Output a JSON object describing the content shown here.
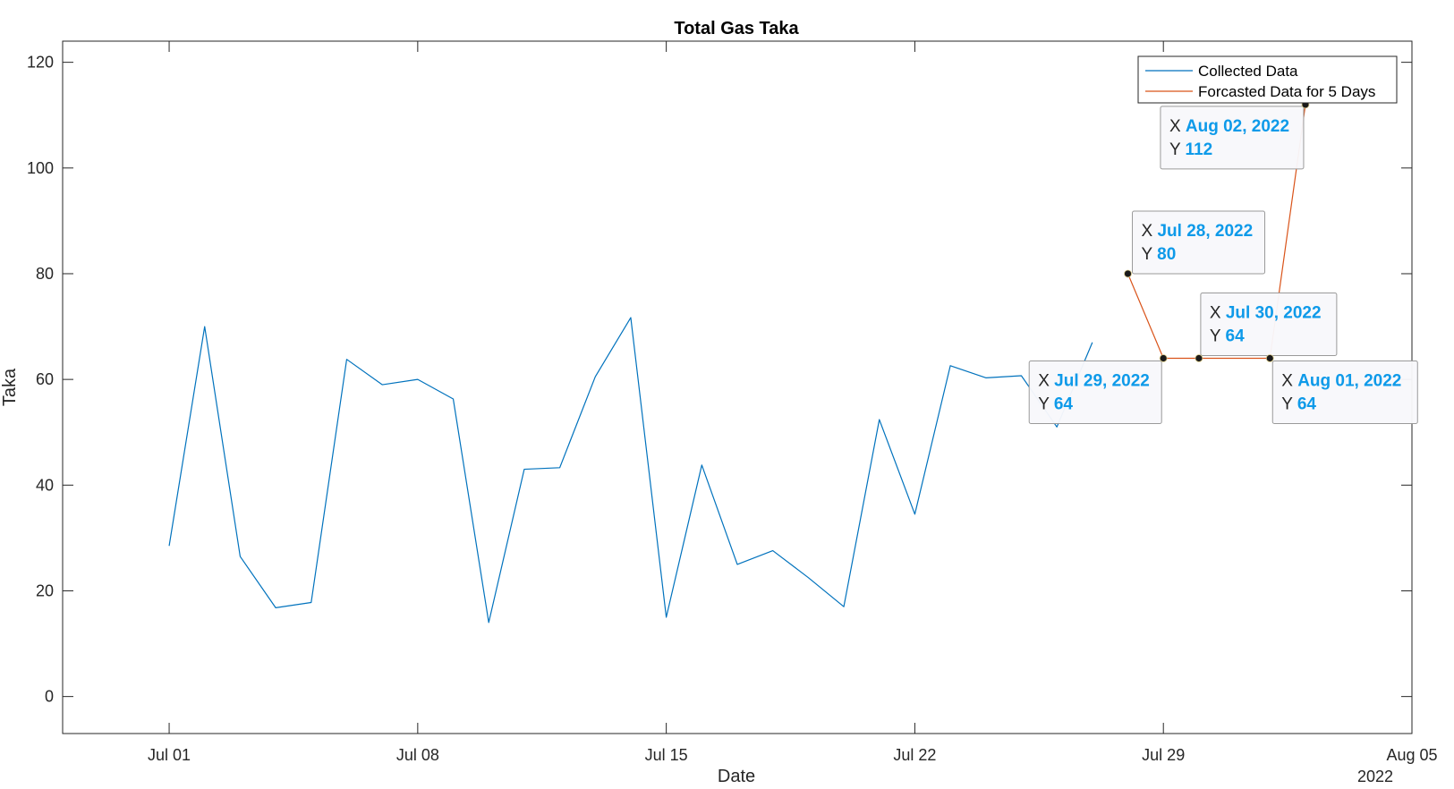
{
  "chart_data": {
    "type": "line",
    "title": "Total Gas Taka",
    "xlabel": "Date",
    "ylabel": "Taka",
    "x_secondary_label": "2022",
    "xlim": [
      "2022-06-28",
      "2022-08-05"
    ],
    "ylim": [
      -7,
      124
    ],
    "x_ticks": [
      {
        "date": "2022-07-01",
        "label": "Jul 01"
      },
      {
        "date": "2022-07-08",
        "label": "Jul 08"
      },
      {
        "date": "2022-07-15",
        "label": "Jul 15"
      },
      {
        "date": "2022-07-22",
        "label": "Jul 22"
      },
      {
        "date": "2022-07-29",
        "label": "Jul 29"
      },
      {
        "date": "2022-08-05",
        "label": "Aug 05"
      }
    ],
    "y_ticks": [
      0,
      20,
      40,
      60,
      80,
      100,
      120
    ],
    "legend_position": "top-right",
    "series": [
      {
        "name": "Collected Data",
        "color": "#0072bd",
        "x": [
          "2022-07-01",
          "2022-07-02",
          "2022-07-03",
          "2022-07-04",
          "2022-07-05",
          "2022-07-06",
          "2022-07-07",
          "2022-07-08",
          "2022-07-09",
          "2022-07-10",
          "2022-07-11",
          "2022-07-12",
          "2022-07-13",
          "2022-07-14",
          "2022-07-15",
          "2022-07-16",
          "2022-07-17",
          "2022-07-18",
          "2022-07-19",
          "2022-07-20",
          "2022-07-21",
          "2022-07-22",
          "2022-07-23",
          "2022-07-24",
          "2022-07-25",
          "2022-07-26",
          "2022-07-27"
        ],
        "y": [
          28.5,
          70,
          26.5,
          16.8,
          17.8,
          63.8,
          59,
          60,
          56.3,
          14,
          43,
          43.3,
          60.5,
          71.7,
          15,
          43.8,
          25,
          27.6,
          22.5,
          17,
          52.4,
          34.5,
          62.6,
          60.3,
          60.7,
          51,
          67
        ]
      },
      {
        "name": "Forcasted Data for 5 Days",
        "color": "#d95319",
        "x": [
          "2022-07-28",
          "2022-07-29",
          "2022-07-30",
          "2022-08-01",
          "2022-08-02"
        ],
        "y": [
          80,
          64,
          64,
          64,
          112
        ]
      }
    ],
    "datatips": [
      {
        "x_label": "X",
        "x_value": "Jul 28, 2022",
        "y_label": "Y",
        "y_value": "80"
      },
      {
        "x_label": "X",
        "x_value": "Jul 29, 2022",
        "y_label": "Y",
        "y_value": "64"
      },
      {
        "x_label": "X",
        "x_value": "Jul 30, 2022",
        "y_label": "Y",
        "y_value": "64"
      },
      {
        "x_label": "X",
        "x_value": "Aug 01, 2022",
        "y_label": "Y",
        "y_value": "64"
      },
      {
        "x_label": "X",
        "x_value": "Aug 02, 2022",
        "y_label": "Y",
        "y_value": "112"
      }
    ]
  }
}
